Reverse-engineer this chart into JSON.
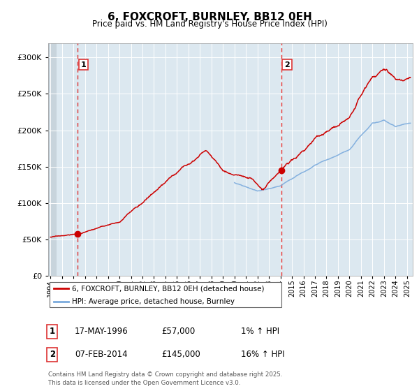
{
  "title": "6, FOXCROFT, BURNLEY, BB12 0EH",
  "subtitle": "Price paid vs. HM Land Registry's House Price Index (HPI)",
  "legend_line1": "6, FOXCROFT, BURNLEY, BB12 0EH (detached house)",
  "legend_line2": "HPI: Average price, detached house, Burnley",
  "sale1_label": "1",
  "sale1_date": "17-MAY-1996",
  "sale1_price": "£57,000",
  "sale1_hpi": "1% ↑ HPI",
  "sale2_label": "2",
  "sale2_date": "07-FEB-2014",
  "sale2_price": "£145,000",
  "sale2_hpi": "16% ↑ HPI",
  "footer": "Contains HM Land Registry data © Crown copyright and database right 2025.\nThis data is licensed under the Open Government Licence v3.0.",
  "red_color": "#cc0000",
  "blue_color": "#7aaadd",
  "dashed_red": "#dd3333",
  "background_plot": "#dce8f0",
  "background_hatch": "#c8d4dc",
  "ylim": [
    0,
    320000
  ],
  "yticks": [
    0,
    50000,
    100000,
    150000,
    200000,
    250000,
    300000
  ],
  "sale1_year": 1996.38,
  "sale2_year": 2014.09,
  "sale1_price_val": 57000,
  "sale2_price_val": 145000
}
